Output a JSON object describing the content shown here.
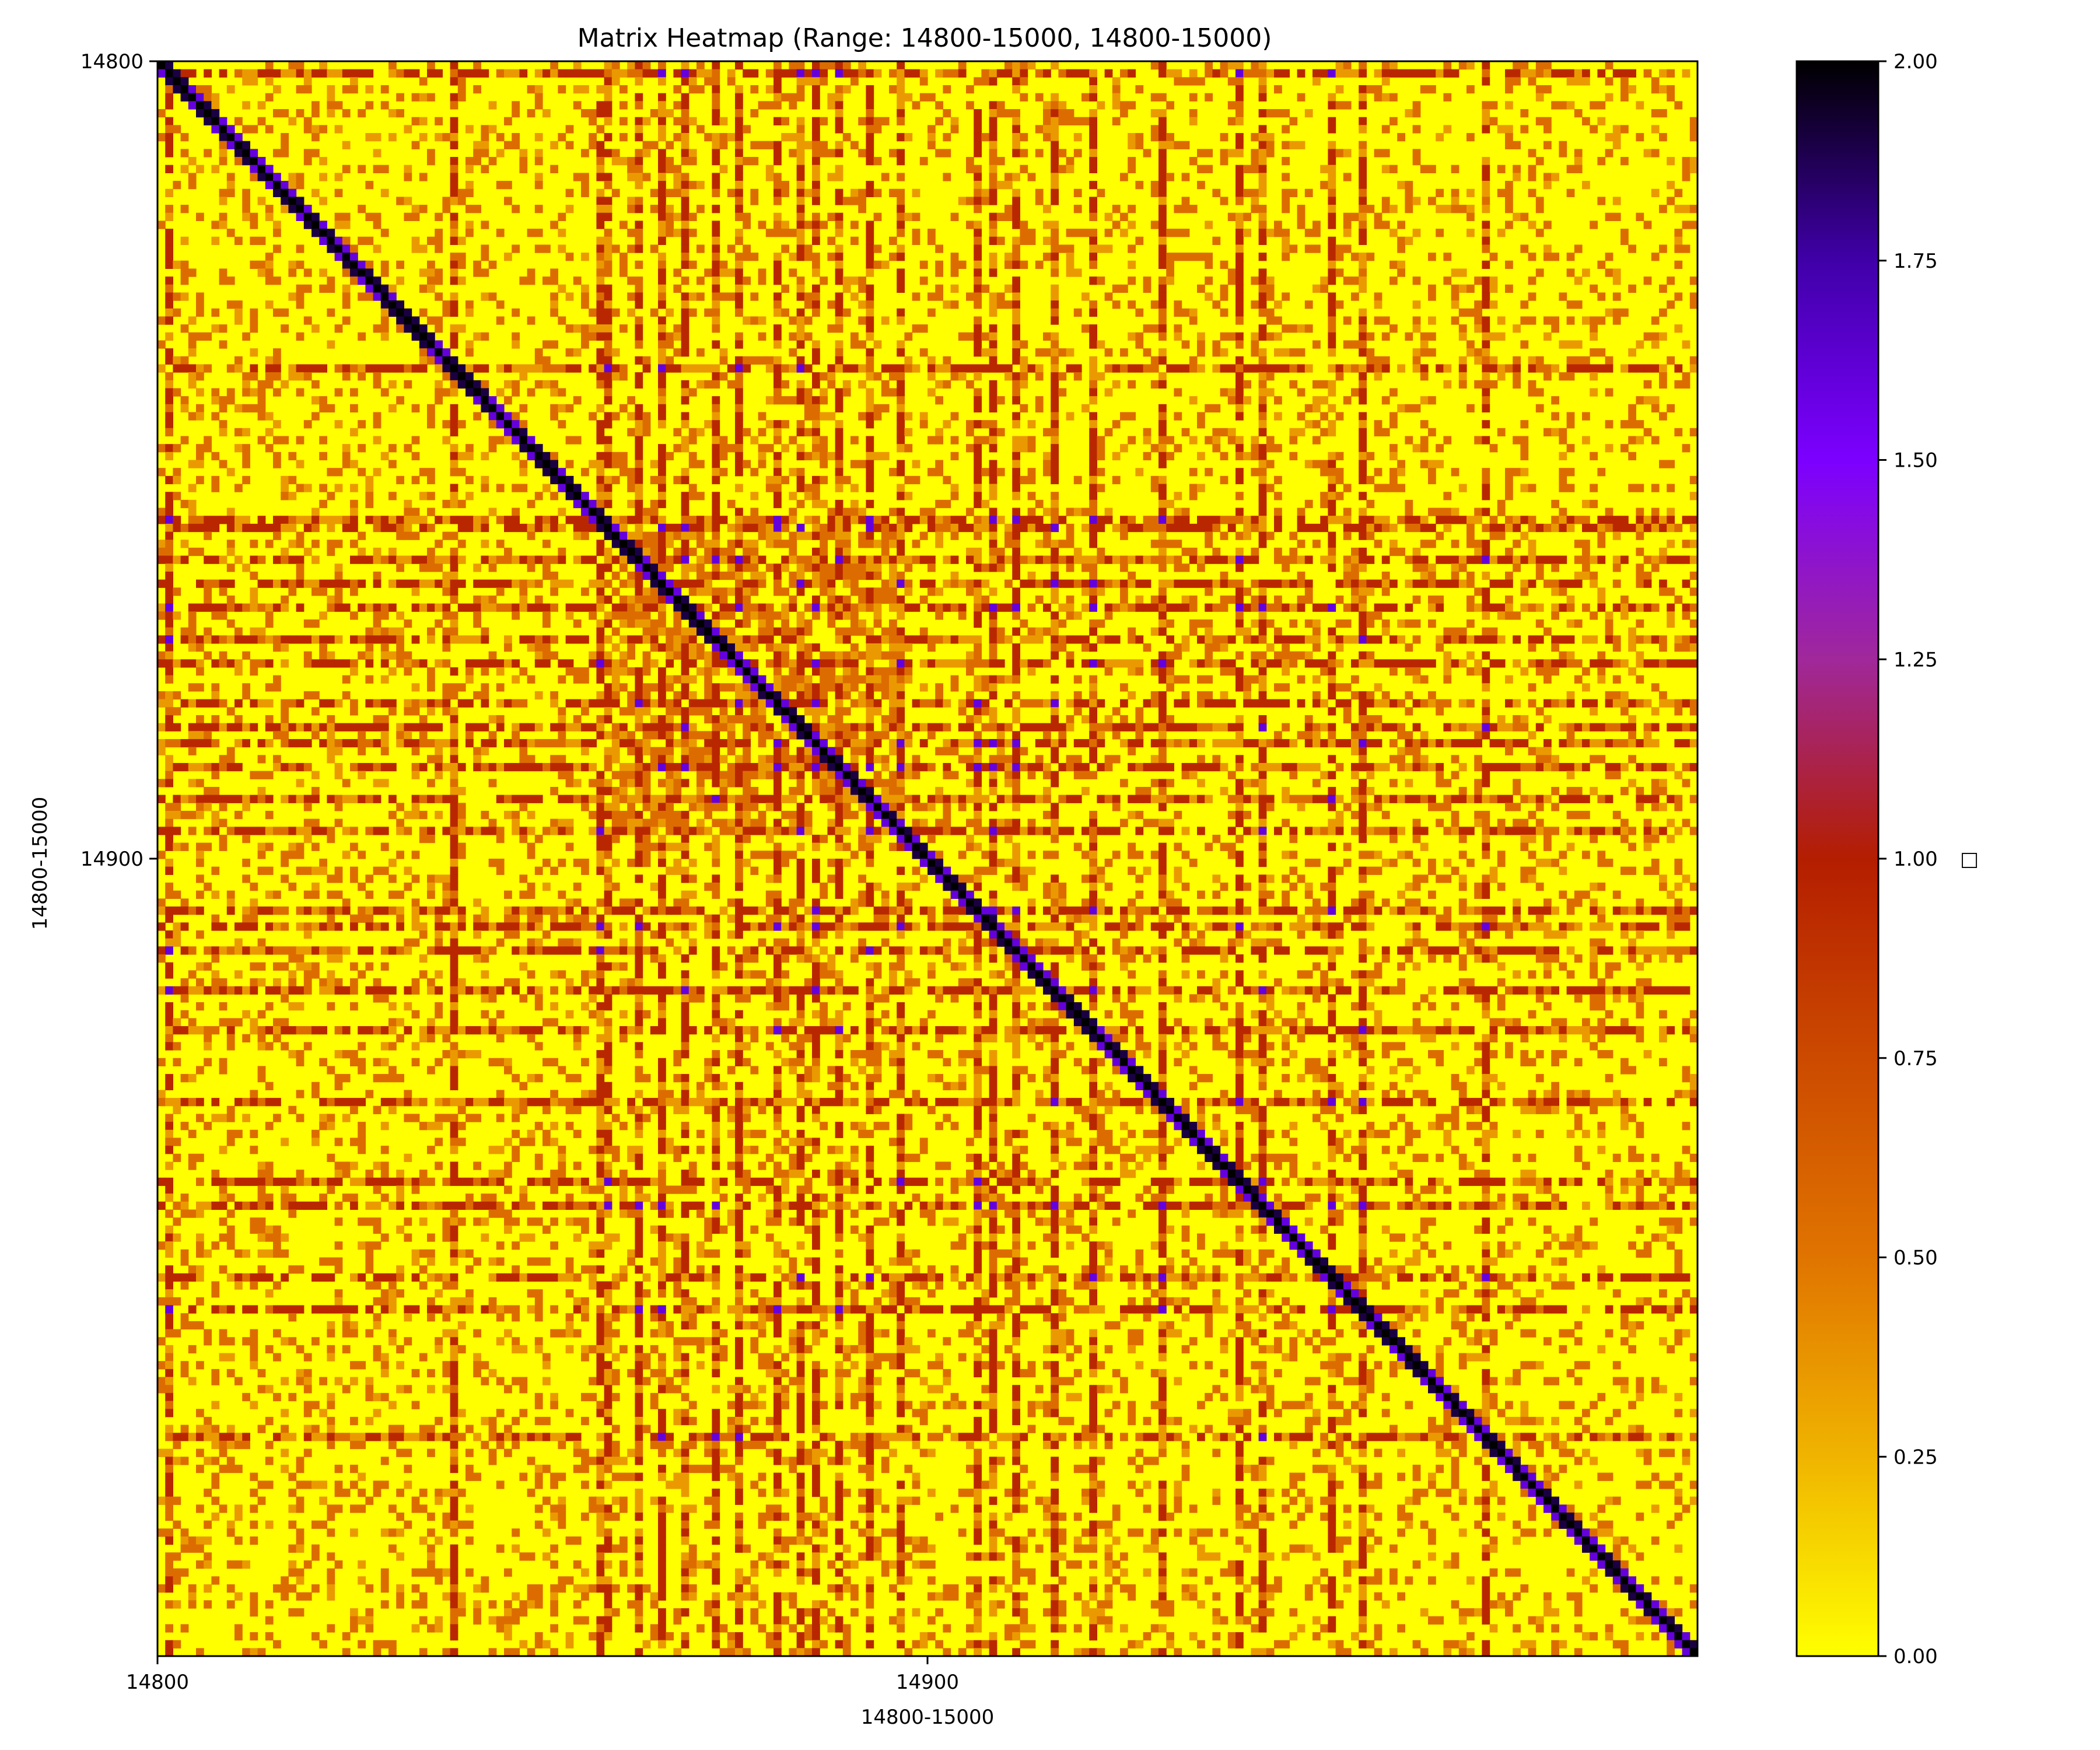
{
  "chart_data": {
    "type": "heatmap",
    "title": "Matrix Heatmap (Range: 14800-15000, 14800-15000)",
    "xlabel": "14800-15000",
    "ylabel": "14800-15000",
    "x_range": [
      14800,
      15000
    ],
    "y_range": [
      14800,
      15000
    ],
    "x_ticks": [
      {
        "value": 14800,
        "label": "14800"
      },
      {
        "value": 14900,
        "label": "14900"
      }
    ],
    "y_ticks": [
      {
        "value": 14800,
        "label": "14800"
      },
      {
        "value": 14900,
        "label": "14900"
      }
    ],
    "y_inverted": true,
    "colormap": "gnuplot2_r",
    "vmin": 0.0,
    "vmax": 2.0,
    "colorbar": {
      "label": "□",
      "ticks": [
        {
          "value": 0.0,
          "label": "0.00"
        },
        {
          "value": 0.25,
          "label": "0.25"
        },
        {
          "value": 0.5,
          "label": "0.50"
        },
        {
          "value": 0.75,
          "label": "0.75"
        },
        {
          "value": 1.0,
          "label": "1.00"
        },
        {
          "value": 1.25,
          "label": "1.25"
        },
        {
          "value": 1.5,
          "label": "1.50"
        },
        {
          "value": 1.75,
          "label": "1.75"
        },
        {
          "value": 2.0,
          "label": "2.00"
        }
      ]
    },
    "pattern": {
      "diagonal_value": 2.0,
      "near_diagonal_value": 1.6,
      "background_value": 0.0,
      "dense_block": [
        14858,
        14895
      ],
      "hot_indices": [
        14801,
        14838,
        14857,
        14858,
        14862,
        14865,
        14868,
        14872,
        14875,
        14880,
        14883,
        14885,
        14888,
        14892,
        14896,
        14906,
        14908,
        14911,
        14916,
        14921,
        14930,
        14940,
        14943,
        14952,
        14956,
        14972
      ]
    }
  }
}
